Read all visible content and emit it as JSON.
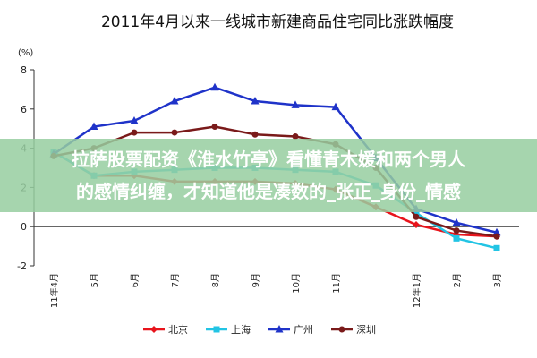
{
  "chart_data": {
    "type": "line",
    "title": "2011年4月以来一线城市新建商品住宅同比涨跌幅度",
    "y_unit": "(%)",
    "categories": [
      "11年4月",
      "5月",
      "6月",
      "7月",
      "8月",
      "9月",
      "10月",
      "11月",
      null,
      "12年1月",
      "2月",
      "3月"
    ],
    "series": [
      {
        "name": "北京",
        "color": "#e8141c",
        "marker": "diamond",
        "values": [
          3.8,
          2.6,
          2.6,
          2.3,
          2.3,
          2.3,
          2.2,
          1.9,
          1.0,
          0.1,
          -0.4,
          -0.5
        ]
      },
      {
        "name": "上海",
        "color": "#22c4e4",
        "marker": "square",
        "values": [
          3.8,
          2.6,
          2.8,
          2.9,
          3.0,
          3.0,
          2.9,
          2.8,
          2.1,
          0.7,
          -0.6,
          -1.1
        ]
      },
      {
        "name": "广州",
        "color": "#1f33c9",
        "marker": "triangle",
        "values": [
          3.7,
          5.1,
          5.4,
          6.4,
          7.1,
          6.4,
          6.2,
          6.1,
          3.5,
          0.9,
          0.2,
          -0.3
        ]
      },
      {
        "name": "深圳",
        "color": "#7a1a1a",
        "marker": "circle",
        "values": [
          3.6,
          4.0,
          4.8,
          4.8,
          5.1,
          4.7,
          4.6,
          4.2,
          3.0,
          0.5,
          -0.2,
          -0.5
        ]
      }
    ],
    "ylim": [
      -2,
      8
    ],
    "yticks": [
      -2,
      0,
      2,
      4,
      6,
      8
    ]
  },
  "banner": {
    "lines": [
      "拉萨股票配资《淮水竹亭》看懂青木媛和两个男人",
      "的感情纠缠，才知道他是凑数的_张正_身份_情感"
    ]
  }
}
